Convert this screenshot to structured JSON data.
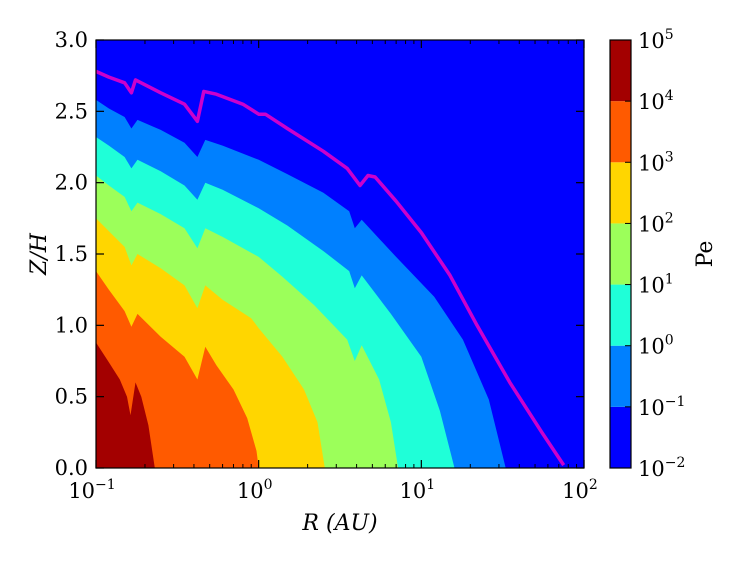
{
  "chart_data": {
    "type": "filled-contour",
    "xlabel": "R (AU)",
    "ylabel": "Z/H",
    "xscale": "log",
    "xlim": [
      0.1,
      100
    ],
    "ylim": [
      0.0,
      3.0
    ],
    "x_ticks": [
      {
        "base": "10",
        "exp": "−1",
        "value": 0.1
      },
      {
        "base": "10",
        "exp": "0",
        "value": 1
      },
      {
        "base": "10",
        "exp": "1",
        "value": 10
      },
      {
        "base": "10",
        "exp": "2",
        "value": 100
      }
    ],
    "y_ticks": [
      "0.0",
      "0.5",
      "1.0",
      "1.5",
      "2.0",
      "2.5",
      "3.0"
    ],
    "colorbar": {
      "label": "Pe",
      "scale": "log",
      "ticks": [
        {
          "base": "10",
          "exp": "−2"
        },
        {
          "base": "10",
          "exp": "−1"
        },
        {
          "base": "10",
          "exp": "0"
        },
        {
          "base": "10",
          "exp": "1"
        },
        {
          "base": "10",
          "exp": "2"
        },
        {
          "base": "10",
          "exp": "3"
        },
        {
          "base": "10",
          "exp": "4"
        },
        {
          "base": "10",
          "exp": "5"
        }
      ],
      "levels": [
        {
          "range": "1e-2 – 1e-1",
          "color": "#0000ff"
        },
        {
          "range": "1e-1 – 1e0",
          "color": "#0080ff"
        },
        {
          "range": "1e0 – 1e1",
          "color": "#1fffd8"
        },
        {
          "range": "1e1 – 1e2",
          "color": "#9cff5a"
        },
        {
          "range": "1e2 – 1e3",
          "color": "#ffd600"
        },
        {
          "range": "1e3 – 1e4",
          "color": "#ff5a00"
        },
        {
          "range": "1e4 – 1e5",
          "color": "#a30000"
        }
      ]
    },
    "contour_boundaries": [
      {
        "level": "1e4",
        "color": "#a30000",
        "points": [
          [
            0.1,
            0.88
          ],
          [
            0.12,
            0.74
          ],
          [
            0.14,
            0.62
          ],
          [
            0.155,
            0.5
          ],
          [
            0.163,
            0.37
          ],
          [
            0.175,
            0.6
          ],
          [
            0.19,
            0.5
          ],
          [
            0.21,
            0.3
          ],
          [
            0.23,
            0.0
          ]
        ]
      },
      {
        "level": "1e3",
        "color": "#ff5a00",
        "points": [
          [
            0.1,
            1.38
          ],
          [
            0.12,
            1.25
          ],
          [
            0.15,
            1.1
          ],
          [
            0.165,
            0.99
          ],
          [
            0.18,
            1.08
          ],
          [
            0.25,
            0.92
          ],
          [
            0.35,
            0.78
          ],
          [
            0.42,
            0.62
          ],
          [
            0.47,
            0.85
          ],
          [
            0.55,
            0.72
          ],
          [
            0.7,
            0.55
          ],
          [
            0.85,
            0.35
          ],
          [
            0.97,
            0.12
          ],
          [
            1.0,
            0.0
          ]
        ]
      },
      {
        "level": "1e2",
        "color": "#ffd600",
        "points": [
          [
            0.1,
            1.75
          ],
          [
            0.12,
            1.66
          ],
          [
            0.15,
            1.55
          ],
          [
            0.165,
            1.42
          ],
          [
            0.18,
            1.5
          ],
          [
            0.25,
            1.4
          ],
          [
            0.35,
            1.28
          ],
          [
            0.42,
            1.12
          ],
          [
            0.47,
            1.28
          ],
          [
            0.6,
            1.18
          ],
          [
            0.9,
            1.05
          ],
          [
            1.0,
            0.98
          ],
          [
            1.4,
            0.78
          ],
          [
            1.9,
            0.55
          ],
          [
            2.3,
            0.32
          ],
          [
            2.55,
            0.0
          ]
        ]
      },
      {
        "level": "1e1",
        "color": "#9cff5a",
        "points": [
          [
            0.1,
            2.05
          ],
          [
            0.12,
            1.98
          ],
          [
            0.15,
            1.9
          ],
          [
            0.165,
            1.8
          ],
          [
            0.18,
            1.86
          ],
          [
            0.25,
            1.78
          ],
          [
            0.35,
            1.68
          ],
          [
            0.42,
            1.54
          ],
          [
            0.47,
            1.68
          ],
          [
            0.6,
            1.62
          ],
          [
            1.0,
            1.48
          ],
          [
            1.4,
            1.34
          ],
          [
            2.2,
            1.14
          ],
          [
            3.5,
            0.9
          ],
          [
            3.9,
            0.75
          ],
          [
            4.3,
            0.86
          ],
          [
            5.5,
            0.62
          ],
          [
            6.5,
            0.32
          ],
          [
            7.2,
            0.0
          ]
        ]
      },
      {
        "level": "1e0",
        "color": "#1fffd8",
        "points": [
          [
            0.1,
            2.32
          ],
          [
            0.12,
            2.26
          ],
          [
            0.15,
            2.18
          ],
          [
            0.165,
            2.1
          ],
          [
            0.18,
            2.16
          ],
          [
            0.25,
            2.08
          ],
          [
            0.35,
            1.98
          ],
          [
            0.42,
            1.88
          ],
          [
            0.47,
            2.0
          ],
          [
            0.6,
            1.95
          ],
          [
            1.0,
            1.82
          ],
          [
            1.5,
            1.7
          ],
          [
            2.5,
            1.52
          ],
          [
            3.6,
            1.38
          ],
          [
            3.9,
            1.26
          ],
          [
            4.3,
            1.35
          ],
          [
            6.5,
            1.08
          ],
          [
            10,
            0.78
          ],
          [
            13,
            0.4
          ],
          [
            16,
            0.0
          ]
        ]
      },
      {
        "level": "1e-1",
        "color": "#0080ff",
        "points": [
          [
            0.1,
            2.58
          ],
          [
            0.12,
            2.52
          ],
          [
            0.15,
            2.46
          ],
          [
            0.165,
            2.38
          ],
          [
            0.18,
            2.44
          ],
          [
            0.25,
            2.37
          ],
          [
            0.35,
            2.28
          ],
          [
            0.42,
            2.18
          ],
          [
            0.47,
            2.3
          ],
          [
            0.6,
            2.26
          ],
          [
            1.0,
            2.16
          ],
          [
            1.5,
            2.06
          ],
          [
            2.5,
            1.93
          ],
          [
            3.6,
            1.8
          ],
          [
            3.9,
            1.68
          ],
          [
            4.3,
            1.74
          ],
          [
            7,
            1.48
          ],
          [
            12,
            1.2
          ],
          [
            18,
            0.9
          ],
          [
            26,
            0.48
          ],
          [
            33,
            0.0
          ]
        ]
      }
    ],
    "line": {
      "color": "#cc00cc",
      "points": [
        [
          0.1,
          2.78
        ],
        [
          0.12,
          2.74
        ],
        [
          0.15,
          2.7
        ],
        [
          0.165,
          2.63
        ],
        [
          0.175,
          2.72
        ],
        [
          0.25,
          2.63
        ],
        [
          0.35,
          2.55
        ],
        [
          0.42,
          2.43
        ],
        [
          0.46,
          2.64
        ],
        [
          0.55,
          2.62
        ],
        [
          0.8,
          2.55
        ],
        [
          1.0,
          2.48
        ],
        [
          1.1,
          2.48
        ],
        [
          1.5,
          2.38
        ],
        [
          2.5,
          2.22
        ],
        [
          3.5,
          2.1
        ],
        [
          4.2,
          1.98
        ],
        [
          4.7,
          2.05
        ],
        [
          5.2,
          2.04
        ],
        [
          7,
          1.87
        ],
        [
          10,
          1.65
        ],
        [
          15,
          1.35
        ],
        [
          22,
          1.0
        ],
        [
          35,
          0.6
        ],
        [
          55,
          0.25
        ],
        [
          75,
          0.02
        ]
      ]
    }
  }
}
